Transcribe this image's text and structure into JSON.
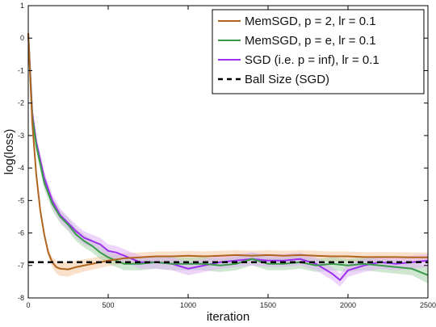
{
  "chart_data": {
    "type": "line",
    "title": "",
    "xlabel": "iteration",
    "ylabel": "log(loss)",
    "xlim": [
      0,
      2500
    ],
    "ylim": [
      -8,
      1
    ],
    "xticks": [
      0,
      500,
      1000,
      1500,
      2000,
      2500
    ],
    "yticks": [
      1,
      0,
      -1,
      -2,
      -3,
      -4,
      -5,
      -6,
      -7,
      -8
    ],
    "grid": false,
    "legend_position": "top-right",
    "ball_size": {
      "name": "Ball Size (SGD)",
      "y": -6.9,
      "style": "dashed",
      "color": "#000000"
    },
    "series": [
      {
        "name": "MemSGD, p = 2, lr = 0.1",
        "color": "#b0651e",
        "band_color": "#f6c9a0",
        "x": [
          0,
          25,
          50,
          75,
          100,
          125,
          150,
          175,
          200,
          250,
          300,
          400,
          500,
          600,
          700,
          800,
          900,
          1000,
          1100,
          1200,
          1300,
          1400,
          1500,
          1600,
          1700,
          1800,
          1900,
          2000,
          2100,
          2200,
          2300,
          2400,
          2500
        ],
        "y": [
          0.15,
          -2.6,
          -4.2,
          -5.3,
          -6.05,
          -6.6,
          -6.9,
          -7.05,
          -7.1,
          -7.12,
          -7.05,
          -6.95,
          -6.85,
          -6.78,
          -6.75,
          -6.72,
          -6.72,
          -6.7,
          -6.72,
          -6.7,
          -6.68,
          -6.7,
          -6.68,
          -6.7,
          -6.68,
          -6.7,
          -6.72,
          -6.72,
          -6.74,
          -6.74,
          -6.74,
          -6.75,
          -6.75
        ],
        "spread": [
          0.05,
          0.1,
          0.12,
          0.12,
          0.12,
          0.12,
          0.15,
          0.2,
          0.22,
          0.22,
          0.2,
          0.18,
          0.17,
          0.16,
          0.15,
          0.15,
          0.15,
          0.15,
          0.15,
          0.15,
          0.15,
          0.15,
          0.15,
          0.15,
          0.15,
          0.15,
          0.15,
          0.15,
          0.15,
          0.15,
          0.15,
          0.15,
          0.15
        ]
      },
      {
        "name": "MemSGD, p = e, lr = 0.1",
        "color": "#3a9a4a",
        "band_color": "#a8d4a9",
        "x": [
          0,
          25,
          50,
          100,
          150,
          200,
          250,
          300,
          350,
          400,
          450,
          500,
          550,
          600,
          700,
          800,
          900,
          1000,
          1100,
          1200,
          1300,
          1400,
          1500,
          1600,
          1700,
          1800,
          1900,
          2000,
          2100,
          2200,
          2300,
          2400,
          2500
        ],
        "y": [
          0.15,
          -2.4,
          -3.3,
          -4.45,
          -5.1,
          -5.5,
          -5.75,
          -6.05,
          -6.25,
          -6.4,
          -6.6,
          -6.75,
          -6.85,
          -6.95,
          -6.95,
          -6.9,
          -6.95,
          -6.95,
          -6.95,
          -7.0,
          -6.95,
          -6.8,
          -6.95,
          -6.95,
          -6.9,
          -7.0,
          -6.95,
          -7.0,
          -6.95,
          -7.0,
          -7.05,
          -7.1,
          -7.3
        ],
        "spread": [
          0.05,
          0.15,
          0.2,
          0.2,
          0.2,
          0.2,
          0.2,
          0.2,
          0.2,
          0.2,
          0.2,
          0.2,
          0.2,
          0.2,
          0.2,
          0.2,
          0.2,
          0.2,
          0.2,
          0.2,
          0.2,
          0.2,
          0.2,
          0.2,
          0.2,
          0.2,
          0.2,
          0.2,
          0.2,
          0.2,
          0.2,
          0.2,
          0.25
        ]
      },
      {
        "name": "SGD (i.e. p = inf), lr = 0.1",
        "color": "#9b30ee",
        "band_color": "#e0b3f5",
        "x": [
          0,
          25,
          50,
          100,
          150,
          200,
          250,
          300,
          350,
          400,
          450,
          500,
          550,
          600,
          700,
          800,
          900,
          1000,
          1100,
          1200,
          1300,
          1400,
          1500,
          1600,
          1700,
          1800,
          1900,
          1950,
          2000,
          2100,
          2200,
          2300,
          2400,
          2500
        ],
        "y": [
          0.15,
          -2.3,
          -3.2,
          -4.3,
          -5.0,
          -5.45,
          -5.7,
          -5.95,
          -6.15,
          -6.25,
          -6.35,
          -6.55,
          -6.6,
          -6.7,
          -6.9,
          -6.9,
          -6.95,
          -7.1,
          -7.0,
          -6.9,
          -6.85,
          -6.8,
          -6.85,
          -6.85,
          -6.8,
          -6.95,
          -7.25,
          -7.45,
          -7.15,
          -7.0,
          -6.9,
          -6.95,
          -6.9,
          -6.85
        ],
        "spread": [
          0.05,
          0.15,
          0.2,
          0.2,
          0.2,
          0.2,
          0.2,
          0.2,
          0.2,
          0.2,
          0.2,
          0.2,
          0.2,
          0.2,
          0.2,
          0.2,
          0.2,
          0.2,
          0.2,
          0.2,
          0.2,
          0.2,
          0.2,
          0.2,
          0.2,
          0.2,
          0.2,
          0.2,
          0.2,
          0.2,
          0.2,
          0.2,
          0.2,
          0.2
        ]
      }
    ]
  }
}
